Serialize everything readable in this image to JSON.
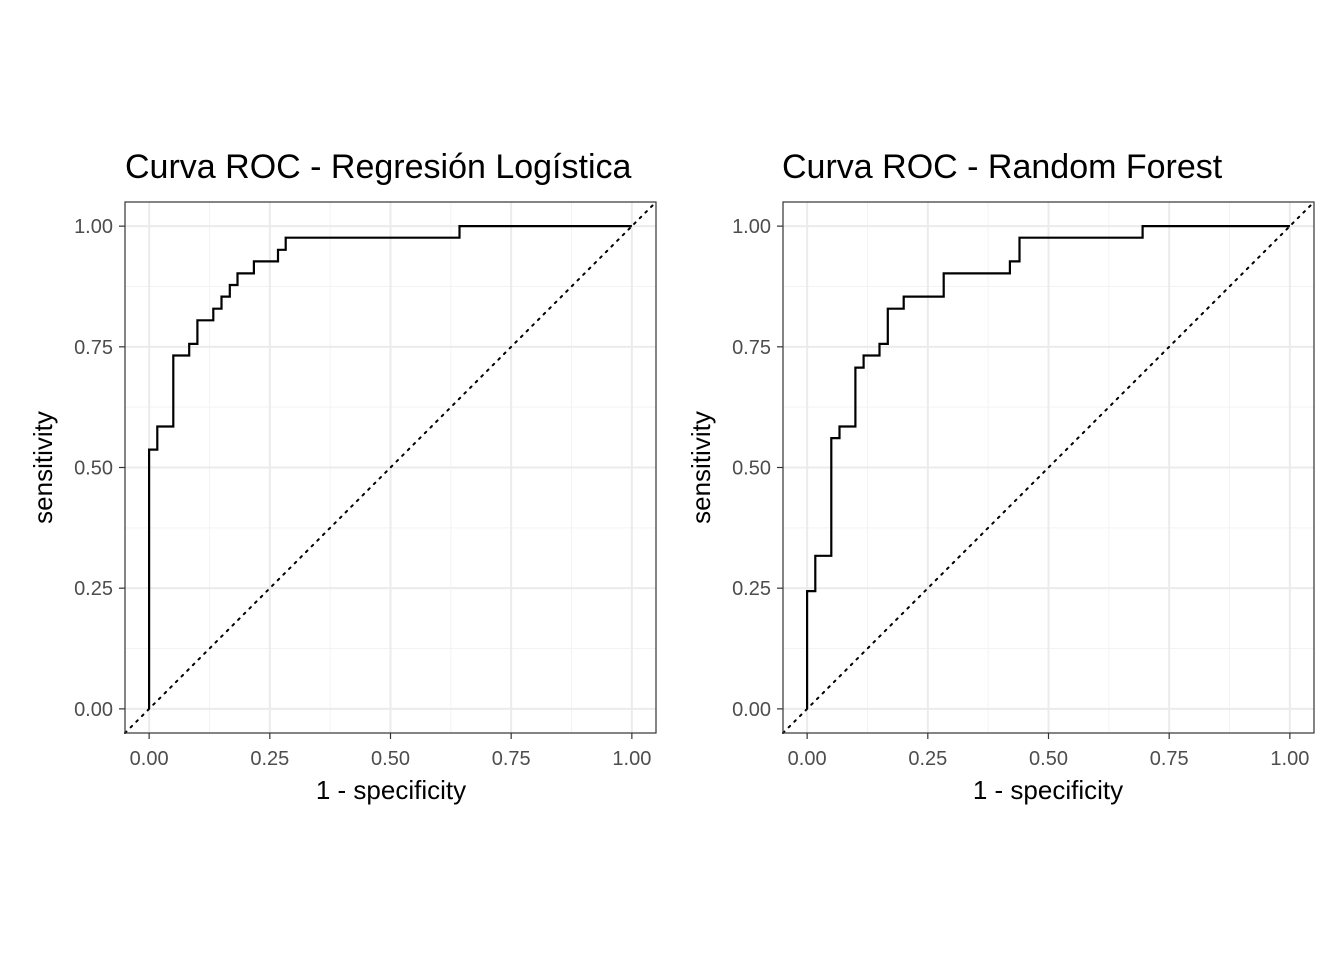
{
  "chart_data": [
    {
      "type": "line",
      "title": "Curva ROC - Regresión Logística",
      "xlabel": "1 - specificity",
      "ylabel": "sensitivity",
      "xlim": [
        0,
        1
      ],
      "ylim": [
        0,
        1
      ],
      "x_ticks": [
        "0.00",
        "0.25",
        "0.50",
        "0.75",
        "1.00"
      ],
      "y_ticks": [
        "0.00",
        "0.25",
        "0.50",
        "0.75",
        "1.00"
      ],
      "grid": true,
      "reference_line": "diagonal-dotted",
      "series": [
        {
          "x": [
            0,
            0,
            0.017,
            0.017,
            0.05,
            0.05,
            0.083,
            0.083,
            0.1,
            0.1,
            0.133,
            0.133,
            0.15,
            0.15,
            0.167,
            0.167,
            0.183,
            0.183,
            0.217,
            0.217,
            0.267,
            0.267,
            0.283,
            0.283,
            0.643,
            0.643,
            1.0
          ],
          "y": [
            0,
            0.537,
            0.537,
            0.585,
            0.585,
            0.732,
            0.732,
            0.756,
            0.756,
            0.805,
            0.805,
            0.829,
            0.829,
            0.854,
            0.854,
            0.878,
            0.878,
            0.902,
            0.902,
            0.927,
            0.927,
            0.951,
            0.951,
            0.976,
            0.976,
            1.0,
            1.0
          ]
        }
      ]
    },
    {
      "type": "line",
      "title": "Curva ROC - Random Forest",
      "xlabel": "1 - specificity",
      "ylabel": "sensitivity",
      "xlim": [
        0,
        1
      ],
      "ylim": [
        0,
        1
      ],
      "x_ticks": [
        "0.00",
        "0.25",
        "0.50",
        "0.75",
        "1.00"
      ],
      "y_ticks": [
        "0.00",
        "0.25",
        "0.50",
        "0.75",
        "1.00"
      ],
      "grid": true,
      "reference_line": "diagonal-dotted",
      "series": [
        {
          "x": [
            0,
            0,
            0.017,
            0.017,
            0.05,
            0.05,
            0.067,
            0.067,
            0.1,
            0.1,
            0.117,
            0.117,
            0.15,
            0.15,
            0.167,
            0.167,
            0.2,
            0.2,
            0.283,
            0.283,
            0.42,
            0.42,
            0.44,
            0.44,
            0.695,
            0.695,
            1.0
          ],
          "y": [
            0,
            0.244,
            0.244,
            0.317,
            0.317,
            0.561,
            0.561,
            0.585,
            0.585,
            0.707,
            0.707,
            0.732,
            0.732,
            0.756,
            0.756,
            0.829,
            0.829,
            0.854,
            0.854,
            0.902,
            0.902,
            0.927,
            0.927,
            0.976,
            0.976,
            1.0,
            1.0
          ]
        }
      ]
    }
  ]
}
